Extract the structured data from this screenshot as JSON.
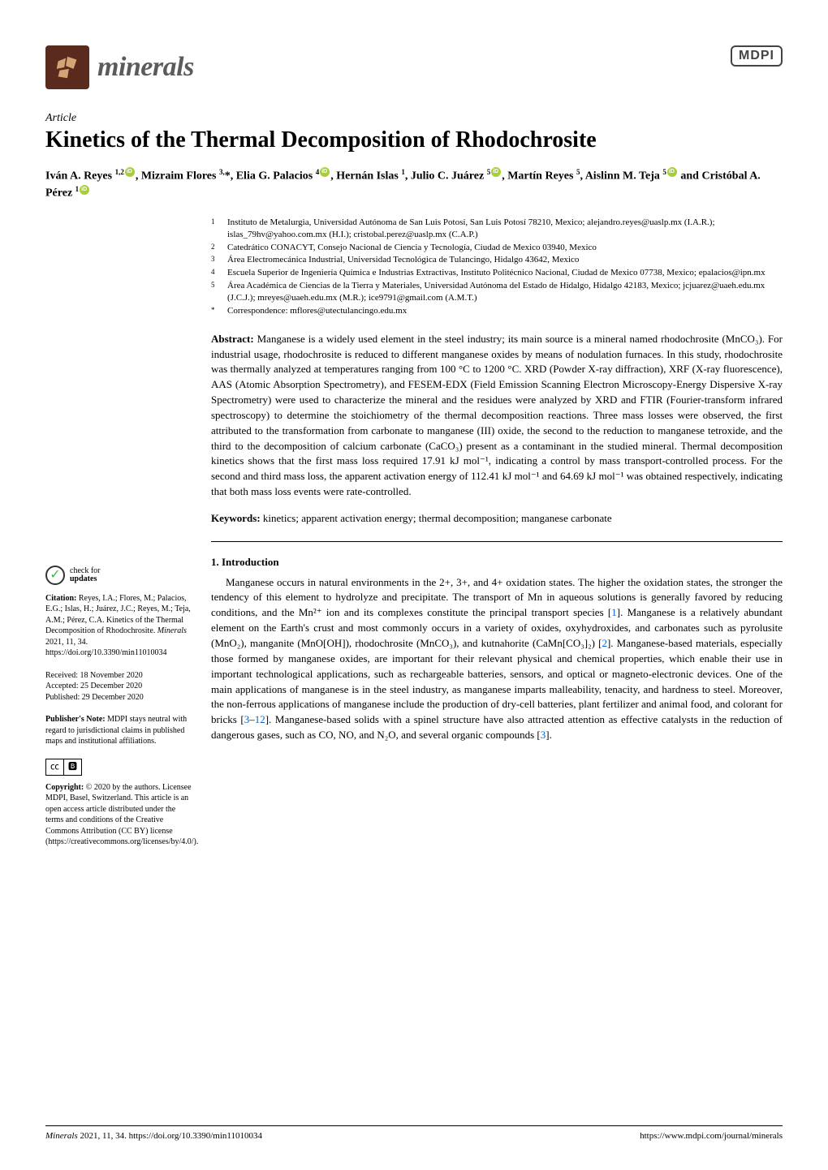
{
  "header": {
    "journal_name": "minerals",
    "publisher_logo": "MDPI"
  },
  "article": {
    "type": "Article",
    "title": "Kinetics of the Thermal Decomposition of Rhodochrosite",
    "authors_html": "Iván A. Reyes <sup>1,2</sup><span class='orcid-icon' data-name='orcid-icon' data-interactable='false'></span>, Mizraim Flores <sup>3,</sup>*, Elia G. Palacios <sup>4</sup><span class='orcid-icon' data-name='orcid-icon' data-interactable='false'></span>, Hernán Islas <sup>1</sup>, Julio C. Juárez <sup>5</sup><span class='orcid-icon' data-name='orcid-icon' data-interactable='false'></span>, Martín Reyes <sup>5</sup>, Aislinn M. Teja <sup>5</sup><span class='orcid-icon' data-name='orcid-icon' data-interactable='false'></span> and Cristóbal A. Pérez <sup>1</sup><span class='orcid-icon' data-name='orcid-icon' data-interactable='false'></span>",
    "affiliations": [
      {
        "num": "1",
        "text": "Instituto de Metalurgia, Universidad Autónoma de San Luis Potosí, San Luis Potosí 78210, Mexico; alejandro.reyes@uaslp.mx (I.A.R.); islas_79hv@yahoo.com.mx (H.I.); cristobal.perez@uaslp.mx (C.A.P.)"
      },
      {
        "num": "2",
        "text": "Catedrático CONACYT, Consejo Nacional de Ciencia y Tecnología, Ciudad de Mexico 03940, Mexico"
      },
      {
        "num": "3",
        "text": "Área Electromecánica Industrial, Universidad Tecnológica de Tulancingo, Hidalgo 43642, Mexico"
      },
      {
        "num": "4",
        "text": "Escuela Superior de Ingeniería Química e Industrias Extractivas, Instituto Politécnico Nacional, Ciudad de Mexico 07738, Mexico; epalacios@ipn.mx"
      },
      {
        "num": "5",
        "text": "Área Académica de Ciencias de la Tierra y Materiales, Universidad Autónoma del Estado de Hidalgo, Hidalgo 42183, Mexico; jcjuarez@uaeh.edu.mx (J.C.J.); mreyes@uaeh.edu.mx (M.R.); ice9791@gmail.com (A.M.T.)"
      },
      {
        "num": "*",
        "text": "Correspondence: mflores@utectulancingo.edu.mx"
      }
    ],
    "abstract_label": "Abstract:",
    "abstract_text": " Manganese is a widely used element in the steel industry; its main source is a mineral named rhodochrosite (MnCO₃). For industrial usage, rhodochrosite is reduced to different manganese oxides by means of nodulation furnaces. In this study, rhodochrosite was thermally analyzed at temperatures ranging from 100 °C to 1200 °C. XRD (Powder X-ray diffraction), XRF (X-ray fluorescence), AAS (Atomic Absorption Spectrometry), and FESEM-EDX (Field Emission Scanning Electron Microscopy-Energy Dispersive X-ray Spectrometry) were used to characterize the mineral and the residues were analyzed by XRD and FTIR (Fourier-transform infrared spectroscopy) to determine the stoichiometry of the thermal decomposition reactions. Three mass losses were observed, the first attributed to the transformation from carbonate to manganese (III) oxide, the second to the reduction to manganese tetroxide, and the third to the decomposition of calcium carbonate (CaCO₃) present as a contaminant in the studied mineral. Thermal decomposition kinetics shows that the first mass loss required 17.91 kJ mol⁻¹, indicating a control by mass transport-controlled process. For the second and third mass loss, the apparent activation energy of 112.41 kJ mol⁻¹ and 64.69 kJ mol⁻¹ was obtained respectively, indicating that both mass loss events were rate-controlled.",
    "keywords_label": "Keywords:",
    "keywords_text": " kinetics; apparent activation energy; thermal decomposition; manganese carbonate",
    "section1_heading": "1. Introduction",
    "section1_body_html": "Manganese occurs in natural environments in the 2+, 3+, and 4+ oxidation states. The higher the oxidation states, the stronger the tendency of this element to hydrolyze and precipitate. The transport of Mn in aqueous solutions is generally favored by reducing conditions, and the Mn²⁺ ion and its complexes constitute the principal transport species [<span class='ref-link'>1</span>]. Manganese is a relatively abundant element on the Earth's crust and most commonly occurs in a variety of oxides, oxyhydroxides, and carbonates such as pyrolusite (MnO₂), manganite (MnO[OH]), rhodochrosite (MnCO₃), and kutnahorite (CaMn[CO₃]₂) [<span class='ref-link'>2</span>]. Manganese-based materials, especially those formed by manganese oxides, are important for their relevant physical and chemical properties, which enable their use in important technological applications, such as rechargeable batteries, sensors, and optical or magneto-electronic devices. One of the main applications of manganese is in the steel industry, as manganese imparts malleability, tenacity, and hardness to steel. Moreover, the non-ferrous applications of manganese include the production of dry-cell batteries, plant fertilizer and animal food, and colorant for bricks [<span class='ref-link'>3</span>–<span class='ref-link'>12</span>]. Manganese-based solids with a spinel structure have also attracted attention as effective catalysts in the reduction of dangerous gases, such as CO, NO, and N₂O, and several organic compounds [<span class='ref-link'>3</span>]."
  },
  "sidebar": {
    "check_updates_line1": "check for",
    "check_updates_line2": "updates",
    "citation_label": "Citation:",
    "citation_text": " Reyes, I.A.; Flores, M.; Palacios, E.G.; Islas, H.; Juárez, J.C.; Reyes, M.; Teja, A.M.; Pérez, C.A. Kinetics of the Thermal Decomposition of Rhodochrosite. ",
    "citation_journal": "Minerals",
    "citation_rest": " 2021, 11, 34. https://doi.org/10.3390/min11010034",
    "received": "Received: 18 November 2020",
    "accepted": "Accepted: 25 December 2020",
    "published": "Published: 29 December 2020",
    "pubnote_label": "Publisher's Note:",
    "pubnote_text": " MDPI stays neutral with regard to jurisdictional claims in published maps and institutional affiliations.",
    "cc_label": "CC",
    "by_label": "BY",
    "copyright_label": "Copyright:",
    "copyright_text": " © 2020 by the authors. Licensee MDPI, Basel, Switzerland. This article is an open access article distributed under the terms and conditions of the Creative Commons Attribution (CC BY) license (https://creativecommons.org/licenses/by/4.0/)."
  },
  "footer": {
    "left_journal": "Minerals",
    "left_rest": " 2021, 11, 34. https://doi.org/10.3390/min11010034",
    "right": "https://www.mdpi.com/journal/minerals"
  },
  "colors": {
    "logo_bg": "#5b2a1e",
    "orcid": "#a6ce39",
    "ref_link": "#0066cc",
    "text": "#000000",
    "bg": "#ffffff"
  }
}
